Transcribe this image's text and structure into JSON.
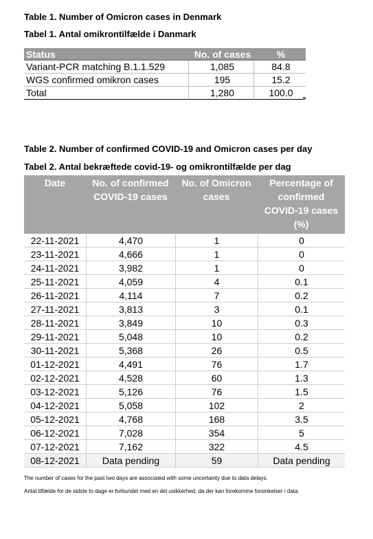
{
  "table1": {
    "title_en": "Table 1. Number of Omicron cases in Denmark",
    "title_da": "Tabel 1. Antal omikrontilfælde i Danmark",
    "header": [
      "Status",
      "No. of cases",
      "%"
    ],
    "rows": [
      [
        "Variant-PCR matching B.1.1.529",
        "1,085",
        "84.8"
      ],
      [
        "WGS confirmed omikron cases",
        "195",
        "15.2"
      ],
      [
        "Total",
        "1,280",
        "100.0"
      ]
    ]
  },
  "table2": {
    "title_en": "Table 2. Number of confirmed COVID-19 and Omicron cases per day",
    "title_da": "Tabel 2. Antal bekræftede covid-19- og omikrontilfælde per dag",
    "header": [
      "Date",
      "No. of confirmed COVID-19 cases",
      "No. of Omicron cases",
      "Percentage of confirmed COVID-19 cases (%)"
    ],
    "rows": [
      [
        "22-11-2021",
        "4,470",
        "1",
        "0"
      ],
      [
        "23-11-2021",
        "4,666",
        "1",
        "0"
      ],
      [
        "24-11-2021",
        "3,982",
        "1",
        "0"
      ],
      [
        "25-11-2021",
        "4,059",
        "4",
        "0.1"
      ],
      [
        "26-11-2021",
        "4,114",
        "7",
        "0.2"
      ],
      [
        "27-11-2021",
        "3,813",
        "3",
        "0.1"
      ],
      [
        "28-11-2021",
        "3,849",
        "10",
        "0.3"
      ],
      [
        "29-11-2021",
        "5,048",
        "10",
        "0.2"
      ],
      [
        "30-11-2021",
        "5,368",
        "26",
        "0.5"
      ],
      [
        "01-12-2021",
        "4,491",
        "76",
        "1.7"
      ],
      [
        "02-12-2021",
        "4,528",
        "60",
        "1.3"
      ],
      [
        "03-12-2021",
        "5,126",
        "76",
        "1.5"
      ],
      [
        "04-12-2021",
        "5,058",
        "102",
        "2"
      ],
      [
        "05-12-2021",
        "4,768",
        "168",
        "3.5"
      ],
      [
        "06-12-2021",
        "7,028",
        "354",
        "5"
      ],
      [
        "07-12-2021",
        "7,162",
        "322",
        "4.5"
      ],
      [
        "08-12-2021",
        "Data pending",
        "59",
        "Data pending"
      ]
    ],
    "notes": [
      "The number of cases for the past two days are associated with some uncertainty due to data delays.",
      "Antal tilfælde for de sidste to dage er forbundet med en del usikkerhed, da der kan forekomme forsinkelser i data."
    ]
  }
}
